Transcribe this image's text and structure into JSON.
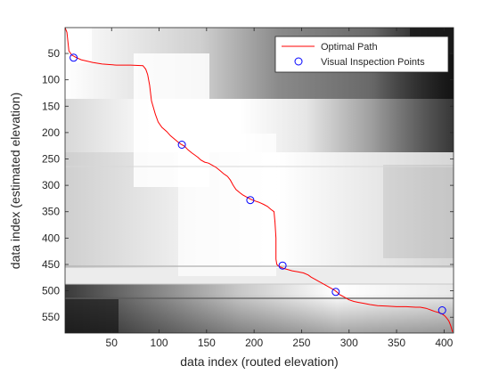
{
  "chart_data": {
    "type": "line",
    "title": "",
    "xlabel": "data index (routed elevation)",
    "ylabel": "data index (estimated elevation)",
    "xlim": [
      1,
      410
    ],
    "ylim": [
      1,
      580
    ],
    "y_reversed": true,
    "grid": false,
    "background": "grayscale cost-matrix image",
    "xticks": [
      50,
      100,
      150,
      200,
      250,
      300,
      350,
      400
    ],
    "yticks": [
      50,
      100,
      150,
      200,
      250,
      300,
      350,
      400,
      450,
      500,
      550
    ],
    "legend_position": "top-right",
    "series": [
      {
        "name": "Optimal Path",
        "kind": "line",
        "color": "#ff0000",
        "x": [
          1,
          3,
          5,
          8,
          12,
          18,
          25,
          30,
          40,
          55,
          70,
          83,
          86,
          88,
          90,
          92,
          96,
          99,
          103,
          108,
          112,
          116,
          120,
          123,
          127,
          130,
          134,
          138,
          141,
          144,
          148,
          152,
          156,
          160,
          164,
          168,
          172,
          175,
          178,
          181,
          185,
          188,
          192,
          196,
          200,
          205,
          210,
          214,
          218,
          221,
          222,
          223,
          223,
          224,
          225,
          227,
          229,
          232,
          236,
          240,
          246,
          252,
          257,
          260,
          264,
          268,
          272,
          276,
          280,
          284,
          287,
          290,
          293,
          296,
          300,
          305,
          310,
          316,
          322,
          330,
          340,
          350,
          360,
          370,
          375,
          378,
          381,
          384,
          387,
          390,
          394,
          397,
          399,
          401,
          403,
          405,
          407,
          409
        ],
        "y": [
          1,
          10,
          45,
          53,
          57,
          62,
          65,
          67,
          70,
          72,
          72,
          73,
          80,
          90,
          110,
          140,
          165,
          180,
          190,
          198,
          206,
          212,
          218,
          222,
          226,
          232,
          238,
          243,
          247,
          252,
          256,
          258,
          262,
          266,
          272,
          278,
          283,
          290,
          300,
          308,
          314,
          318,
          322,
          326,
          329,
          332,
          336,
          340,
          346,
          350,
          370,
          400,
          440,
          450,
          452,
          454,
          456,
          458,
          460,
          462,
          464,
          466,
          470,
          474,
          478,
          482,
          486,
          490,
          494,
          498,
          502,
          507,
          510,
          513,
          517,
          520,
          522,
          524,
          526,
          528,
          529,
          530,
          530,
          531,
          531,
          532,
          533,
          535,
          537,
          539,
          541,
          543,
          545,
          548,
          552,
          557,
          566,
          578
        ]
      },
      {
        "name": "Visual Inspection Points",
        "kind": "scatter",
        "marker": "circle",
        "color": "#0000ff",
        "x": [
          10,
          124,
          196,
          230,
          286,
          398
        ],
        "y": [
          58,
          223,
          328,
          452,
          502,
          537
        ]
      }
    ]
  }
}
